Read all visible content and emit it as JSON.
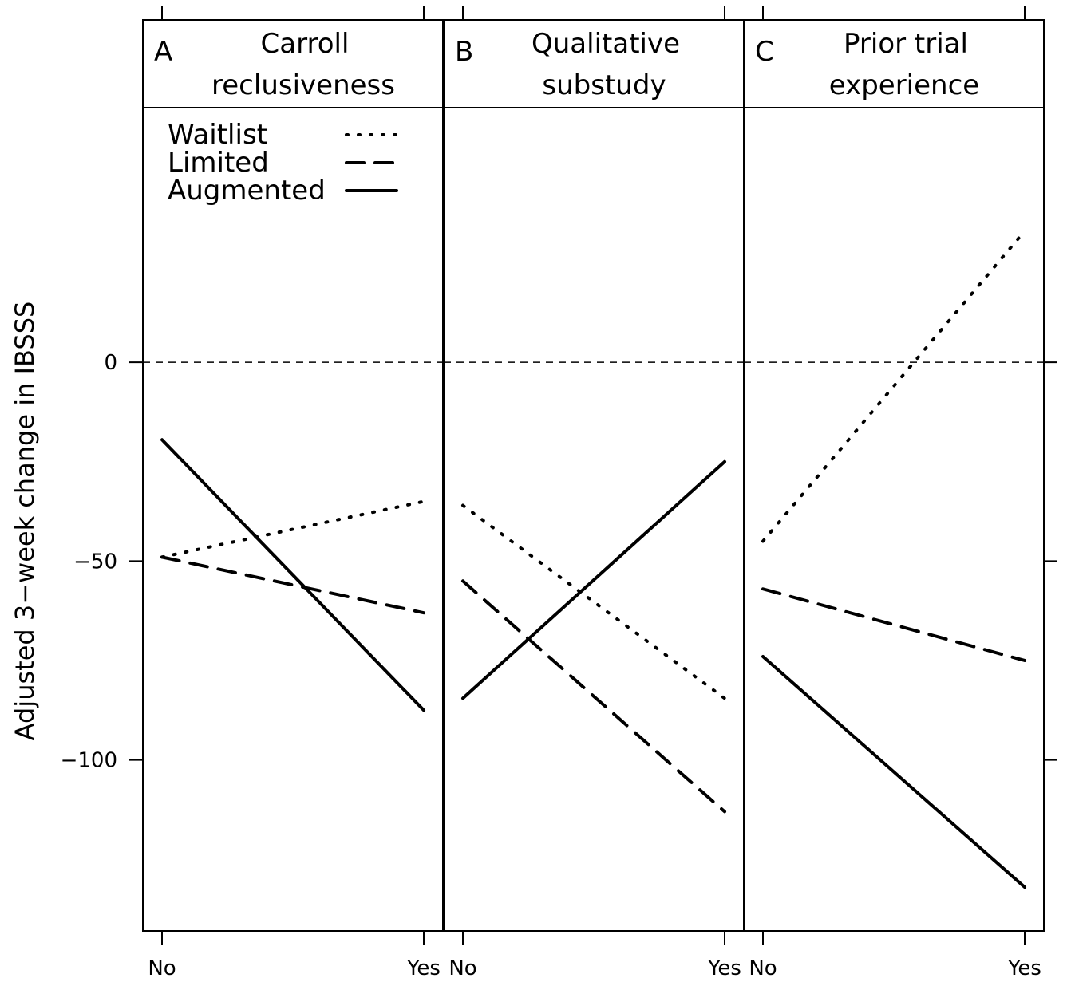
{
  "chart_data": {
    "type": "line",
    "ylabel": "Adjusted 3−week change in IBSSS",
    "ylim": [
      -143,
      64
    ],
    "yticks": [
      0,
      -50,
      -100
    ],
    "ytick_labels": [
      "0",
      "−50",
      "−100"
    ],
    "reference_line": 0,
    "x_levels": [
      "No",
      "Yes"
    ],
    "legend": [
      {
        "name": "Waitlist",
        "style": "dotted"
      },
      {
        "name": "Limited",
        "style": "dashed"
      },
      {
        "name": "Augmented",
        "style": "solid"
      }
    ],
    "legend_placement": "top-left",
    "panels": [
      {
        "letter": "A",
        "title_line1": "Carroll",
        "title_line2": "reclusiveness",
        "series": [
          {
            "name": "Waitlist",
            "values": [
              -49,
              -35
            ]
          },
          {
            "name": "Limited",
            "values": [
              -49,
              -63
            ]
          },
          {
            "name": "Augmented",
            "values": [
              -19.5,
              -87.5
            ]
          }
        ]
      },
      {
        "letter": "B",
        "title_line1": "Qualitative",
        "title_line2": "substudy",
        "series": [
          {
            "name": "Waitlist",
            "values": [
              -36,
              -84.5
            ]
          },
          {
            "name": "Limited",
            "values": [
              -55,
              -113
            ]
          },
          {
            "name": "Augmented",
            "values": [
              -84.5,
              -25
            ]
          }
        ]
      },
      {
        "letter": "C",
        "title_line1": "Prior trial",
        "title_line2": "experience",
        "series": [
          {
            "name": "Waitlist",
            "values": [
              -45,
              33
            ]
          },
          {
            "name": "Limited",
            "values": [
              -57,
              -75
            ]
          },
          {
            "name": "Augmented",
            "values": [
              -74,
              -132
            ]
          }
        ]
      }
    ]
  }
}
